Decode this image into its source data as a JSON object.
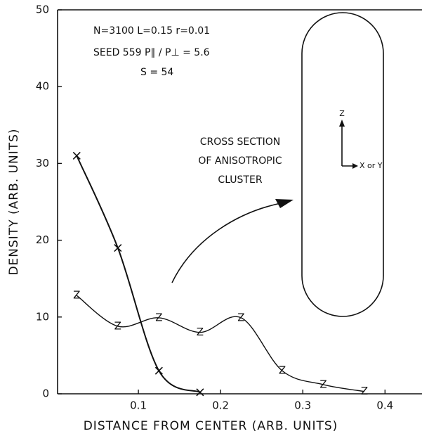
{
  "chart_data": {
    "type": "line",
    "xlabel": "DISTANCE FROM CENTER (ARB. UNITS)",
    "ylabel": "DENSITY (ARB. UNITS)",
    "xlim": [
      0,
      0.445
    ],
    "ylim": [
      0,
      50
    ],
    "xticks": [
      0.1,
      0.2,
      0.3,
      0.4
    ],
    "yticks": [
      0,
      10,
      20,
      30,
      40,
      50
    ],
    "series": [
      {
        "marker": "x",
        "color": "#111",
        "x": [
          0.025,
          0.075,
          0.125,
          0.175
        ],
        "values": [
          31,
          19,
          3,
          0.2
        ]
      },
      {
        "marker": "Z",
        "color": "#111",
        "x": [
          0.025,
          0.075,
          0.125,
          0.175,
          0.225,
          0.275,
          0.325,
          0.375
        ],
        "values": [
          12.8,
          8.8,
          9.9,
          8,
          9.9,
          3,
          1.2,
          0.3
        ]
      }
    ],
    "annotations": [
      "N=3100    L=0.15      r=0.01",
      "SEED 559     P∥ / P⊥ = 5.6",
      "S = 54",
      "CROSS SECTION",
      "OF ANISOTROPIC",
      "CLUSTER",
      "Z",
      "X or Y"
    ]
  }
}
